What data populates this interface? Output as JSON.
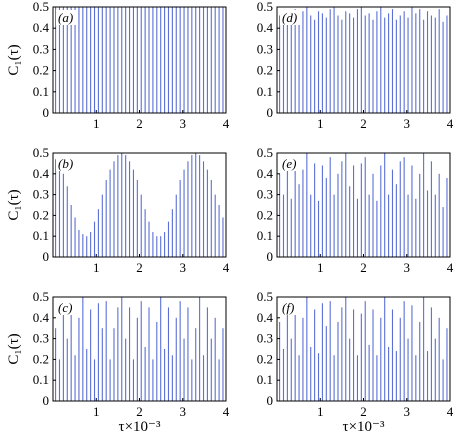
{
  "chart_data": [
    {
      "type": "bar",
      "panel_label": "(a)",
      "ylabel": "C₁(τ)",
      "xlabel": "",
      "xlim": [
        0,
        4
      ],
      "ylim": [
        0,
        0.5
      ],
      "x_ticks": [
        "1",
        "2",
        "3",
        "4"
      ],
      "y_ticks": [
        "0",
        "0.1",
        "0.2",
        "0.3",
        "0.4",
        "0.5"
      ],
      "series": [
        {
          "color": "#5b6fd6",
          "x": [
            0.06,
            0.15,
            0.24,
            0.33,
            0.42,
            0.51,
            0.6,
            0.69,
            0.78,
            0.87,
            0.96,
            1.05,
            1.14,
            1.23,
            1.32,
            1.41,
            1.5,
            1.59,
            1.68,
            1.77,
            1.86,
            1.95,
            2.04,
            2.13,
            2.22,
            2.31,
            2.4,
            2.49,
            2.58,
            2.67,
            2.76,
            2.85,
            2.94,
            3.03,
            3.12,
            3.21,
            3.3,
            3.39,
            3.48,
            3.57,
            3.66,
            3.75,
            3.84,
            3.93
          ],
          "values": [
            0.5,
            0.5,
            0.5,
            0.5,
            0.5,
            0.5,
            0.5,
            0.5,
            0.5,
            0.5,
            0.5,
            0.5,
            0.5,
            0.5,
            0.5,
            0.5,
            0.5,
            0.5,
            0.5,
            0.5,
            0.5,
            0.5,
            0.5,
            0.5,
            0.5,
            0.5,
            0.5,
            0.5,
            0.5,
            0.5,
            0.5,
            0.5,
            0.5,
            0.5,
            0.5,
            0.5,
            0.5,
            0.5,
            0.5,
            0.5,
            0.5,
            0.5,
            0.5,
            0.5
          ]
        }
      ]
    },
    {
      "type": "bar",
      "panel_label": "(b)",
      "ylabel": "C₁(τ)",
      "xlabel": "",
      "xlim": [
        0,
        4
      ],
      "ylim": [
        0,
        0.5
      ],
      "x_ticks": [
        "1",
        "2",
        "3",
        "4"
      ],
      "y_ticks": [
        "0",
        "0.1",
        "0.2",
        "0.3",
        "0.4",
        "0.5"
      ],
      "series": [
        {
          "color": "#5b6fd6",
          "x": [
            0.06,
            0.15,
            0.24,
            0.33,
            0.42,
            0.51,
            0.6,
            0.69,
            0.78,
            0.87,
            0.96,
            1.05,
            1.14,
            1.23,
            1.32,
            1.41,
            1.5,
            1.59,
            1.68,
            1.77,
            1.86,
            1.95,
            2.04,
            2.13,
            2.22,
            2.31,
            2.4,
            2.49,
            2.58,
            2.67,
            2.76,
            2.85,
            2.94,
            3.03,
            3.12,
            3.21,
            3.3,
            3.39,
            3.48,
            3.57,
            3.66,
            3.75,
            3.84,
            3.93
          ],
          "values": [
            0.47,
            0.45,
            0.4,
            0.34,
            0.25,
            0.19,
            0.13,
            0.11,
            0.1,
            0.12,
            0.17,
            0.23,
            0.3,
            0.37,
            0.42,
            0.46,
            0.49,
            0.5,
            0.49,
            0.46,
            0.42,
            0.37,
            0.3,
            0.23,
            0.17,
            0.12,
            0.1,
            0.1,
            0.12,
            0.17,
            0.23,
            0.3,
            0.37,
            0.42,
            0.46,
            0.49,
            0.5,
            0.49,
            0.46,
            0.42,
            0.37,
            0.3,
            0.25,
            0.19
          ]
        }
      ]
    },
    {
      "type": "bar",
      "panel_label": "(c)",
      "ylabel": "C₁(τ)",
      "xlabel": "τ×10⁻³",
      "xlim": [
        0,
        4
      ],
      "ylim": [
        0,
        0.5
      ],
      "x_ticks": [
        "1",
        "2",
        "3",
        "4"
      ],
      "y_ticks": [
        "0",
        "0.1",
        "0.2",
        "0.3",
        "0.4",
        "0.5"
      ],
      "series": [
        {
          "color": "#5b6fd6",
          "x": [
            0.06,
            0.15,
            0.24,
            0.33,
            0.42,
            0.51,
            0.6,
            0.69,
            0.78,
            0.87,
            0.96,
            1.05,
            1.14,
            1.23,
            1.32,
            1.41,
            1.5,
            1.59,
            1.68,
            1.77,
            1.86,
            1.95,
            2.04,
            2.13,
            2.22,
            2.31,
            2.4,
            2.49,
            2.58,
            2.67,
            2.76,
            2.85,
            2.94,
            3.03,
            3.12,
            3.21,
            3.3,
            3.39,
            3.48,
            3.57,
            3.66,
            3.75,
            3.84,
            3.93
          ],
          "values": [
            0.35,
            0.2,
            0.45,
            0.3,
            0.48,
            0.22,
            0.4,
            0.5,
            0.25,
            0.44,
            0.2,
            0.47,
            0.35,
            0.48,
            0.2,
            0.35,
            0.45,
            0.5,
            0.3,
            0.45,
            0.2,
            0.4,
            0.48,
            0.26,
            0.45,
            0.2,
            0.38,
            0.5,
            0.25,
            0.45,
            0.22,
            0.4,
            0.48,
            0.3,
            0.45,
            0.2,
            0.35,
            0.5,
            0.22,
            0.45,
            0.3,
            0.4,
            0.2,
            0.35
          ]
        }
      ]
    },
    {
      "type": "bar",
      "panel_label": "(d)",
      "ylabel": "",
      "xlabel": "",
      "xlim": [
        0,
        4
      ],
      "ylim": [
        0,
        0.5
      ],
      "x_ticks": [
        "1",
        "2",
        "3",
        "4"
      ],
      "y_ticks": [
        "0",
        "0.1",
        "0.2",
        "0.3",
        "0.4",
        "0.5"
      ],
      "series": [
        {
          "color": "#5b6fd6",
          "x": [
            0.06,
            0.15,
            0.24,
            0.33,
            0.42,
            0.51,
            0.6,
            0.69,
            0.78,
            0.87,
            0.96,
            1.05,
            1.14,
            1.23,
            1.32,
            1.41,
            1.5,
            1.59,
            1.68,
            1.77,
            1.86,
            1.95,
            2.04,
            2.13,
            2.22,
            2.31,
            2.4,
            2.49,
            2.58,
            2.67,
            2.76,
            2.85,
            2.94,
            3.03,
            3.12,
            3.21,
            3.3,
            3.39,
            3.48,
            3.57,
            3.66,
            3.75,
            3.84,
            3.93
          ],
          "values": [
            0.46,
            0.48,
            0.44,
            0.47,
            0.49,
            0.45,
            0.48,
            0.5,
            0.46,
            0.44,
            0.48,
            0.47,
            0.45,
            0.49,
            0.5,
            0.46,
            0.44,
            0.48,
            0.47,
            0.45,
            0.49,
            0.5,
            0.46,
            0.47,
            0.44,
            0.48,
            0.5,
            0.45,
            0.47,
            0.49,
            0.44,
            0.46,
            0.48,
            0.45,
            0.5,
            0.47,
            0.49,
            0.44,
            0.48,
            0.46,
            0.45,
            0.49,
            0.43,
            0.46
          ]
        }
      ]
    },
    {
      "type": "bar",
      "panel_label": "(e)",
      "ylabel": "",
      "xlabel": "",
      "xlim": [
        0,
        4
      ],
      "ylim": [
        0,
        0.5
      ],
      "x_ticks": [
        "1",
        "2",
        "3",
        "4"
      ],
      "y_ticks": [
        "0",
        "0.1",
        "0.2",
        "0.3",
        "0.4",
        "0.5"
      ],
      "series": [
        {
          "color": "#5b6fd6",
          "x": [
            0.06,
            0.15,
            0.24,
            0.33,
            0.42,
            0.51,
            0.6,
            0.69,
            0.78,
            0.87,
            0.96,
            1.05,
            1.14,
            1.23,
            1.32,
            1.41,
            1.5,
            1.59,
            1.68,
            1.77,
            1.86,
            1.95,
            2.04,
            2.13,
            2.22,
            2.31,
            2.4,
            2.49,
            2.58,
            2.67,
            2.76,
            2.85,
            2.94,
            3.03,
            3.12,
            3.21,
            3.3,
            3.39,
            3.48,
            3.57,
            3.66,
            3.75,
            3.84,
            3.93
          ],
          "values": [
            0.4,
            0.3,
            0.46,
            0.28,
            0.48,
            0.35,
            0.42,
            0.5,
            0.3,
            0.45,
            0.27,
            0.44,
            0.38,
            0.48,
            0.3,
            0.4,
            0.46,
            0.5,
            0.34,
            0.44,
            0.28,
            0.45,
            0.48,
            0.3,
            0.4,
            0.27,
            0.44,
            0.5,
            0.3,
            0.42,
            0.35,
            0.46,
            0.48,
            0.3,
            0.44,
            0.28,
            0.4,
            0.5,
            0.32,
            0.46,
            0.3,
            0.4,
            0.24,
            0.38
          ]
        }
      ]
    },
    {
      "type": "bar",
      "panel_label": "(f)",
      "ylabel": "",
      "xlabel": "τ×10⁻³",
      "xlim": [
        0,
        4
      ],
      "ylim": [
        0,
        0.5
      ],
      "x_ticks": [
        "1",
        "2",
        "3",
        "4"
      ],
      "y_ticks": [
        "0",
        "0.1",
        "0.2",
        "0.3",
        "0.4",
        "0.5"
      ],
      "series": [
        {
          "color": "#5b6fd6",
          "x": [
            0.06,
            0.15,
            0.24,
            0.33,
            0.42,
            0.51,
            0.6,
            0.69,
            0.78,
            0.87,
            0.96,
            1.05,
            1.14,
            1.23,
            1.32,
            1.41,
            1.5,
            1.59,
            1.68,
            1.77,
            1.86,
            1.95,
            2.04,
            2.13,
            2.22,
            2.31,
            2.4,
            2.49,
            2.58,
            2.67,
            2.76,
            2.85,
            2.94,
            3.03,
            3.12,
            3.21,
            3.3,
            3.39,
            3.48,
            3.57,
            3.66,
            3.75,
            3.84,
            3.93
          ],
          "values": [
            0.38,
            0.25,
            0.45,
            0.3,
            0.48,
            0.22,
            0.4,
            0.5,
            0.26,
            0.44,
            0.23,
            0.47,
            0.36,
            0.48,
            0.22,
            0.38,
            0.45,
            0.5,
            0.3,
            0.44,
            0.22,
            0.42,
            0.48,
            0.27,
            0.44,
            0.22,
            0.4,
            0.5,
            0.26,
            0.44,
            0.24,
            0.4,
            0.48,
            0.3,
            0.46,
            0.22,
            0.38,
            0.5,
            0.24,
            0.45,
            0.3,
            0.4,
            0.2,
            0.35
          ]
        }
      ]
    }
  ]
}
